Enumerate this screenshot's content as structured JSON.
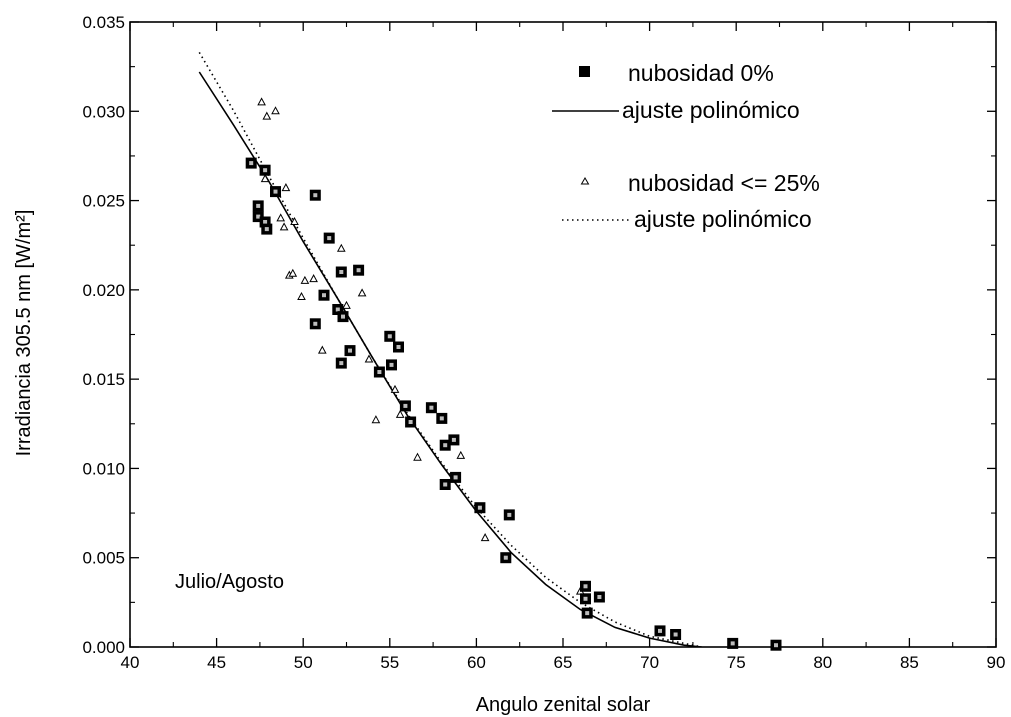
{
  "chart_data": {
    "type": "scatter",
    "xlabel": "Angulo zenital solar",
    "ylabel": "Irradiancia 305.5 nm [W/m²]",
    "xlim": [
      40,
      90
    ],
    "ylim": [
      0,
      0.035
    ],
    "x_ticks": [
      "40",
      "45",
      "50",
      "55",
      "60",
      "65",
      "70",
      "75",
      "80",
      "85",
      "90"
    ],
    "y_ticks": [
      "0.000",
      "0.005",
      "0.010",
      "0.015",
      "0.020",
      "0.025",
      "0.030",
      "0.035"
    ],
    "annotation": "Julio/Agosto",
    "legend_position": "top-right",
    "grid": false,
    "series": [
      {
        "name": "nubosidad 0%",
        "kind": "scatter",
        "marker": "filled-square",
        "color": "#000000",
        "points": [
          [
            47.0,
            0.0271
          ],
          [
            47.4,
            0.0247
          ],
          [
            47.4,
            0.0241
          ],
          [
            47.8,
            0.0238
          ],
          [
            47.8,
            0.0267
          ],
          [
            47.9,
            0.0234
          ],
          [
            48.4,
            0.0255
          ],
          [
            50.7,
            0.0253
          ],
          [
            50.7,
            0.0181
          ],
          [
            51.2,
            0.0197
          ],
          [
            51.5,
            0.0229
          ],
          [
            52.0,
            0.0189
          ],
          [
            52.2,
            0.021
          ],
          [
            52.2,
            0.0159
          ],
          [
            52.3,
            0.0185
          ],
          [
            52.7,
            0.0166
          ],
          [
            53.2,
            0.0211
          ],
          [
            54.4,
            0.0154
          ],
          [
            55.0,
            0.0174
          ],
          [
            55.1,
            0.0158
          ],
          [
            55.5,
            0.0168
          ],
          [
            55.9,
            0.0135
          ],
          [
            56.2,
            0.0126
          ],
          [
            57.4,
            0.0134
          ],
          [
            58.0,
            0.0128
          ],
          [
            58.2,
            0.0113
          ],
          [
            58.2,
            0.0091
          ],
          [
            58.7,
            0.0116
          ],
          [
            58.8,
            0.0095
          ],
          [
            60.2,
            0.0078
          ],
          [
            61.7,
            0.005
          ],
          [
            61.9,
            0.0074
          ],
          [
            66.3,
            0.0034
          ],
          [
            66.3,
            0.0027
          ],
          [
            66.4,
            0.0019
          ],
          [
            67.1,
            0.0028
          ],
          [
            70.6,
            0.0009
          ],
          [
            71.5,
            0.0007
          ],
          [
            74.8,
            0.0002
          ],
          [
            77.3,
            0.0001
          ]
        ]
      },
      {
        "name": "ajuste polinómico",
        "kind": "line",
        "style": "solid",
        "color": "#000000",
        "points": [
          [
            44.0,
            0.0322
          ],
          [
            46.0,
            0.0292
          ],
          [
            48.0,
            0.0261
          ],
          [
            50.0,
            0.0227
          ],
          [
            52.0,
            0.0195
          ],
          [
            54.0,
            0.0162
          ],
          [
            56.0,
            0.013
          ],
          [
            58.0,
            0.0102
          ],
          [
            60.0,
            0.0076
          ],
          [
            62.0,
            0.0053
          ],
          [
            64.0,
            0.0035
          ],
          [
            66.0,
            0.0021
          ],
          [
            68.0,
            0.0011
          ],
          [
            70.0,
            0.0005
          ],
          [
            72.0,
            0.0001
          ],
          [
            73.0,
            0.0
          ]
        ]
      },
      {
        "name": "nubosidad <= 25%",
        "kind": "scatter",
        "marker": "open-triangle",
        "color": "#000000",
        "points": [
          [
            47.6,
            0.0305
          ],
          [
            47.9,
            0.0297
          ],
          [
            48.4,
            0.03
          ],
          [
            47.8,
            0.0262
          ],
          [
            48.7,
            0.024
          ],
          [
            48.9,
            0.0235
          ],
          [
            49.0,
            0.0257
          ],
          [
            49.2,
            0.0208
          ],
          [
            49.4,
            0.0209
          ],
          [
            49.5,
            0.0238
          ],
          [
            49.9,
            0.0196
          ],
          [
            50.1,
            0.0205
          ],
          [
            50.6,
            0.0206
          ],
          [
            51.1,
            0.0166
          ],
          [
            52.2,
            0.0223
          ],
          [
            52.5,
            0.0191
          ],
          [
            53.4,
            0.0198
          ],
          [
            53.8,
            0.0161
          ],
          [
            54.2,
            0.0127
          ],
          [
            55.3,
            0.0144
          ],
          [
            55.6,
            0.013
          ],
          [
            56.6,
            0.0106
          ],
          [
            59.1,
            0.0107
          ],
          [
            60.5,
            0.0061
          ],
          [
            66.0,
            0.0031
          ]
        ]
      },
      {
        "name": "ajuste polinómico",
        "kind": "line",
        "style": "dotted",
        "color": "#000000",
        "points": [
          [
            44.0,
            0.0333
          ],
          [
            46.0,
            0.03
          ],
          [
            48.0,
            0.0264
          ],
          [
            50.0,
            0.0229
          ],
          [
            52.0,
            0.0195
          ],
          [
            54.0,
            0.0162
          ],
          [
            56.0,
            0.0131
          ],
          [
            58.0,
            0.0103
          ],
          [
            60.0,
            0.0078
          ],
          [
            62.0,
            0.0057
          ],
          [
            64.0,
            0.0039
          ],
          [
            66.0,
            0.0025
          ],
          [
            68.0,
            0.0014
          ],
          [
            70.0,
            0.0006
          ],
          [
            72.0,
            0.0002
          ],
          [
            73.0,
            0.0
          ]
        ]
      }
    ]
  }
}
